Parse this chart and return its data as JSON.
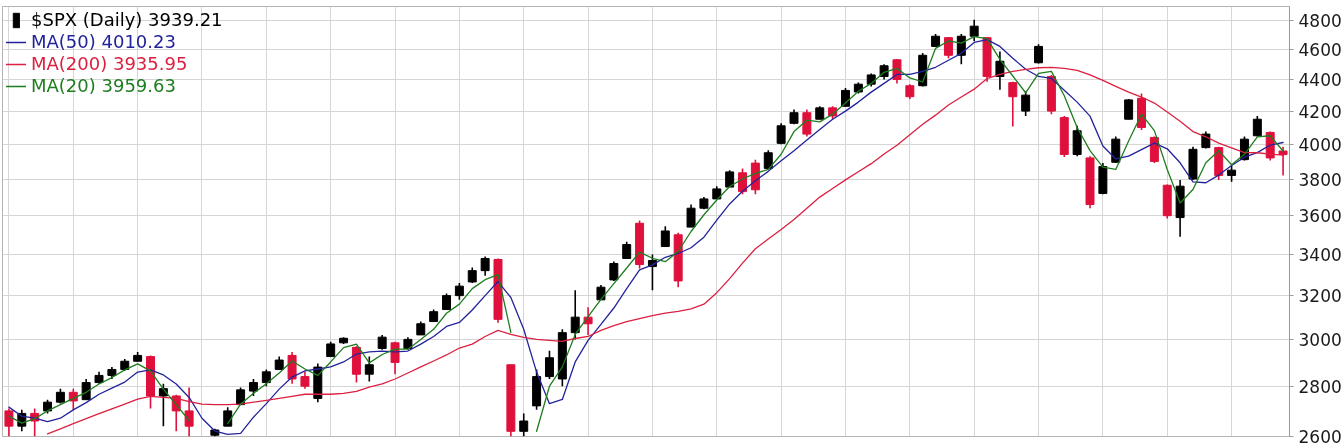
{
  "chart_data": {
    "type": "candlestick",
    "log": "y",
    "ylim": [
      2600,
      4900
    ],
    "yticks": [
      2600,
      2800,
      3000,
      3200,
      3400,
      3600,
      3800,
      4000,
      4200,
      4400,
      4600,
      4800
    ],
    "grid": true,
    "legend": "top left",
    "categories": [
      null,
      null,
      null,
      null,
      null,
      null,
      null,
      null,
      null,
      null,
      null,
      null,
      null,
      null,
      null,
      null,
      null,
      null,
      null,
      null,
      null,
      null,
      null,
      null,
      null,
      null,
      null,
      null,
      null,
      null,
      null,
      null,
      null,
      null,
      null,
      null,
      null,
      null,
      null,
      null,
      null,
      null,
      null,
      null,
      null,
      null,
      null,
      null,
      null,
      null,
      null,
      null,
      null,
      null,
      null,
      null,
      null,
      null,
      null,
      null,
      null,
      null,
      null,
      null,
      null,
      null,
      null,
      null,
      null,
      null,
      null,
      null,
      null,
      null,
      null,
      null,
      null,
      null,
      null,
      null,
      null,
      null,
      null,
      null,
      null,
      null,
      null,
      null,
      null,
      null,
      null,
      null,
      null,
      null,
      null,
      null,
      null,
      null,
      null,
      null
    ],
    "series": [
      {
        "name": "$SPX (Daily) 3939.21",
        "ohlc": [
          [
            2700,
            2710,
            2600,
            2640
          ],
          [
            2640,
            2705,
            2620,
            2690
          ],
          [
            2690,
            2710,
            2600,
            2660
          ],
          [
            2700,
            2745,
            2690,
            2735
          ],
          [
            2735,
            2790,
            2730,
            2775
          ],
          [
            2775,
            2790,
            2705,
            2740
          ],
          [
            2745,
            2830,
            2745,
            2815
          ],
          [
            2815,
            2860,
            2810,
            2845
          ],
          [
            2845,
            2880,
            2830,
            2870
          ],
          [
            2870,
            2915,
            2865,
            2905
          ],
          [
            2905,
            2945,
            2905,
            2930
          ],
          [
            2925,
            2930,
            2710,
            2760
          ],
          [
            2760,
            2810,
            2640,
            2790
          ],
          [
            2760,
            2765,
            2620,
            2700
          ],
          [
            2700,
            2795,
            2600,
            2640
          ],
          null,
          [
            2605,
            2630,
            2600,
            2625
          ],
          [
            2640,
            2715,
            2640,
            2700
          ],
          [
            2725,
            2795,
            2725,
            2785
          ],
          [
            2780,
            2830,
            2760,
            2815
          ],
          [
            2815,
            2870,
            2800,
            2860
          ],
          [
            2870,
            2925,
            2870,
            2910
          ],
          [
            2930,
            2945,
            2810,
            2830
          ],
          [
            2840,
            2860,
            2790,
            2800
          ],
          [
            2750,
            2895,
            2735,
            2880
          ],
          [
            2925,
            2990,
            2925,
            2980
          ],
          [
            2985,
            3010,
            2980,
            3005
          ],
          [
            2965,
            2970,
            2815,
            2850
          ],
          [
            2850,
            2925,
            2820,
            2890
          ],
          [
            2960,
            3020,
            2955,
            3010
          ],
          [
            2985,
            2990,
            2850,
            2900
          ],
          [
            2960,
            3010,
            2955,
            3000
          ],
          [
            3020,
            3080,
            3020,
            3070
          ],
          [
            3080,
            3135,
            3080,
            3125
          ],
          [
            3135,
            3210,
            3135,
            3200
          ],
          [
            3200,
            3260,
            3180,
            3245
          ],
          [
            3265,
            3335,
            3260,
            3320
          ],
          [
            3320,
            3390,
            3295,
            3380
          ],
          [
            3375,
            3380,
            3075,
            3090
          ],
          [
            2890,
            2890,
            2600,
            2620
          ],
          [
            2620,
            2690,
            2600,
            2660
          ],
          [
            2720,
            2870,
            2705,
            2840
          ],
          [
            2840,
            2950,
            2830,
            2920
          ],
          [
            2830,
            3045,
            2800,
            3030
          ],
          [
            3030,
            3225,
            3000,
            3100
          ],
          [
            3100,
            3145,
            3020,
            3070
          ],
          [
            3180,
            3250,
            3180,
            3240
          ],
          [
            3275,
            3365,
            3270,
            3355
          ],
          [
            3380,
            3465,
            3380,
            3450
          ],
          [
            3560,
            3575,
            3330,
            3350
          ],
          [
            3340,
            3400,
            3225,
            3370
          ],
          [
            3440,
            3545,
            3440,
            3520
          ],
          [
            3500,
            3510,
            3240,
            3270
          ],
          [
            3540,
            3660,
            3540,
            3640
          ],
          [
            3640,
            3700,
            3635,
            3690
          ],
          [
            3690,
            3760,
            3690,
            3745
          ],
          [
            3755,
            3850,
            3755,
            3840
          ],
          [
            3835,
            3860,
            3715,
            3730
          ],
          [
            3890,
            3910,
            3715,
            3740
          ],
          [
            3860,
            3965,
            3860,
            3950
          ],
          [
            4005,
            4125,
            4000,
            4110
          ],
          [
            4125,
            4210,
            4120,
            4190
          ],
          [
            4190,
            4210,
            4045,
            4060
          ],
          [
            4150,
            4230,
            4150,
            4220
          ],
          [
            4220,
            4230,
            4150,
            4170
          ],
          [
            4230,
            4345,
            4230,
            4330
          ],
          [
            4320,
            4380,
            4310,
            4370
          ],
          [
            4370,
            4440,
            4355,
            4430
          ],
          [
            4420,
            4500,
            4400,
            4490
          ],
          [
            4530,
            4535,
            4375,
            4400
          ],
          [
            4360,
            4370,
            4275,
            4290
          ],
          [
            4360,
            4575,
            4355,
            4560
          ],
          [
            4620,
            4705,
            4620,
            4690
          ],
          [
            4680,
            4685,
            4540,
            4560
          ],
          [
            4560,
            4705,
            4500,
            4690
          ],
          [
            4690,
            4805,
            4655,
            4760
          ],
          [
            4680,
            4685,
            4385,
            4420
          ],
          [
            4420,
            4585,
            4335,
            4520
          ],
          [
            4380,
            4385,
            4105,
            4290
          ],
          [
            4200,
            4325,
            4170,
            4300
          ],
          [
            4510,
            4635,
            4505,
            4620
          ],
          [
            4420,
            4430,
            4180,
            4200
          ],
          [
            4160,
            4170,
            3925,
            3940
          ],
          [
            3940,
            4110,
            3930,
            4080
          ],
          [
            3920,
            3930,
            3640,
            3660
          ],
          [
            3720,
            3890,
            3715,
            3870
          ],
          [
            3895,
            4045,
            3890,
            4030
          ],
          [
            4150,
            4275,
            4150,
            4270
          ],
          [
            4280,
            4310,
            4085,
            4100
          ],
          [
            4040,
            4045,
            3890,
            3900
          ],
          [
            3765,
            3770,
            3585,
            3600
          ],
          [
            3590,
            3795,
            3490,
            3760
          ],
          [
            3800,
            3985,
            3795,
            3970
          ],
          [
            3980,
            4075,
            3975,
            4060
          ],
          [
            3980,
            3985,
            3795,
            3820
          ],
          [
            3820,
            3875,
            3785,
            3850
          ],
          [
            3910,
            4045,
            3905,
            4030
          ],
          [
            4050,
            4170,
            4045,
            4150
          ],
          [
            4070,
            4075,
            3905,
            3920
          ],
          [
            3960,
            3985,
            3820,
            3939.21
          ]
        ],
        "colors": [
          "#e0103c",
          "#000000",
          "#e0103c",
          "#000000",
          "#000000",
          "#e0103c",
          "#000000",
          "#000000",
          "#000000",
          "#000000",
          "#000000",
          "#e0103c",
          "#000000",
          "#e0103c",
          "#e0103c",
          null,
          "#000000",
          "#000000",
          "#000000",
          "#000000",
          "#000000",
          "#000000",
          "#e0103c",
          "#e0103c",
          "#000000",
          "#000000",
          "#000000",
          "#e0103c",
          "#000000",
          "#000000",
          "#e0103c",
          "#000000",
          "#000000",
          "#000000",
          "#000000",
          "#000000",
          "#000000",
          "#000000",
          "#e0103c",
          "#e0103c",
          "#000000",
          "#000000",
          "#000000",
          "#000000",
          "#000000",
          "#e0103c",
          "#000000",
          "#000000",
          "#000000",
          "#e0103c",
          "#000000",
          "#000000",
          "#e0103c",
          "#000000",
          "#000000",
          "#000000",
          "#000000",
          "#e0103c",
          "#e0103c",
          "#000000",
          "#000000",
          "#000000",
          "#e0103c",
          "#000000",
          "#e0103c",
          "#000000",
          "#000000",
          "#000000",
          "#000000",
          "#e0103c",
          "#e0103c",
          "#000000",
          "#000000",
          "#e0103c",
          "#000000",
          "#000000",
          "#e0103c",
          "#000000",
          "#e0103c",
          "#000000",
          "#000000",
          "#e0103c",
          "#e0103c",
          "#000000",
          "#e0103c",
          "#000000",
          "#000000",
          "#000000",
          "#e0103c",
          "#e0103c",
          "#e0103c",
          "#000000",
          "#000000",
          "#000000",
          "#e0103c",
          "#000000",
          "#000000",
          "#000000",
          "#e0103c",
          "#e0103c"
        ]
      },
      {
        "name": "MA(50) 4010.23",
        "type": "line",
        "color": "#23239b",
        "values": [
          2715,
          2679,
          2671,
          2658,
          2671,
          2704,
          2733,
          2767,
          2792,
          2817,
          2859,
          2868,
          2847,
          2809,
          2754,
          2671,
          2621,
          2608,
          2612,
          2675,
          2729,
          2788,
          2838,
          2864,
          2872,
          2881,
          2902,
          2936,
          2945,
          2949,
          2945,
          2949,
          2979,
          3013,
          3058,
          3076,
          3133,
          3200,
          3267,
          3191,
          3045,
          2859,
          2729,
          2746,
          2902,
          2996,
          3067,
          3142,
          3233,
          3324,
          3348,
          3386,
          3405,
          3434,
          3488,
          3576,
          3663,
          3732,
          3790,
          3843,
          3903,
          3962,
          4025,
          4088,
          4150,
          4200,
          4256,
          4319,
          4375,
          4433,
          4433,
          4453,
          4480,
          4527,
          4573,
          4647,
          4667,
          4620,
          4540,
          4467,
          4420,
          4407,
          4331,
          4256,
          4169,
          3989,
          3914,
          3930,
          3968,
          4006,
          3973,
          3892,
          3784,
          3779,
          3822,
          3876,
          3924,
          3951,
          3995,
          4010
        ]
      },
      {
        "name": "MA(200) 3935.95",
        "type": "line",
        "color": "#dc2040",
        "values": [
          null,
          null,
          null,
          2610,
          2629,
          2650,
          2669,
          2689,
          2708,
          2727,
          2747,
          2758,
          2754,
          2750,
          2737,
          2727,
          2725,
          2725,
          2727,
          2735,
          2742,
          2750,
          2758,
          2767,
          2767,
          2767,
          2771,
          2779,
          2796,
          2810,
          2830,
          2855,
          2881,
          2906,
          2932,
          2962,
          2979,
          3013,
          3040,
          3022,
          3009,
          3000,
          2996,
          2991,
          3004,
          3013,
          3040,
          3062,
          3080,
          3093,
          3107,
          3118,
          3127,
          3138,
          3160,
          3214,
          3281,
          3357,
          3429,
          3478,
          3527,
          3580,
          3640,
          3700,
          3747,
          3795,
          3841,
          3887,
          3943,
          3994,
          4056,
          4119,
          4175,
          4238,
          4288,
          4338,
          4406,
          4433,
          4453,
          4467,
          4477,
          4480,
          4473,
          4460,
          4430,
          4394,
          4356,
          4319,
          4288,
          4250,
          4194,
          4138,
          4075,
          4044,
          4006,
          3978,
          3951,
          3950,
          3942,
          3936
        ]
      },
      {
        "name": "MA(20) 3959.63",
        "type": "line",
        "color": "#1e7d1e",
        "values": [
          2679,
          2652,
          2669,
          2700,
          2725,
          2750,
          2775,
          2809,
          2836,
          2868,
          2894,
          2864,
          2788,
          2725,
          2662,
          null,
          null,
          2650,
          2727,
          2771,
          2810,
          2855,
          2906,
          2872,
          2845,
          2902,
          2964,
          2979,
          2898,
          2934,
          2957,
          2957,
          3000,
          3045,
          3118,
          3160,
          3233,
          3276,
          3300,
          3031,
          null,
          2620,
          2800,
          2881,
          3022,
          3102,
          3182,
          3257,
          3333,
          3412,
          3381,
          3364,
          3415,
          3517,
          3605,
          3684,
          3758,
          3800,
          3832,
          3854,
          3941,
          4075,
          4144,
          4134,
          4181,
          4250,
          4325,
          4375,
          4447,
          4473,
          4410,
          4384,
          4607,
          4657,
          4643,
          4687,
          4673,
          4533,
          4423,
          4315,
          4440,
          4453,
          4296,
          4100,
          3962,
          3867,
          3854,
          4019,
          4181,
          4081,
          3854,
          3668,
          3742,
          3892,
          3962,
          3881,
          3941,
          4044,
          4050,
          3960
        ]
      }
    ]
  }
}
